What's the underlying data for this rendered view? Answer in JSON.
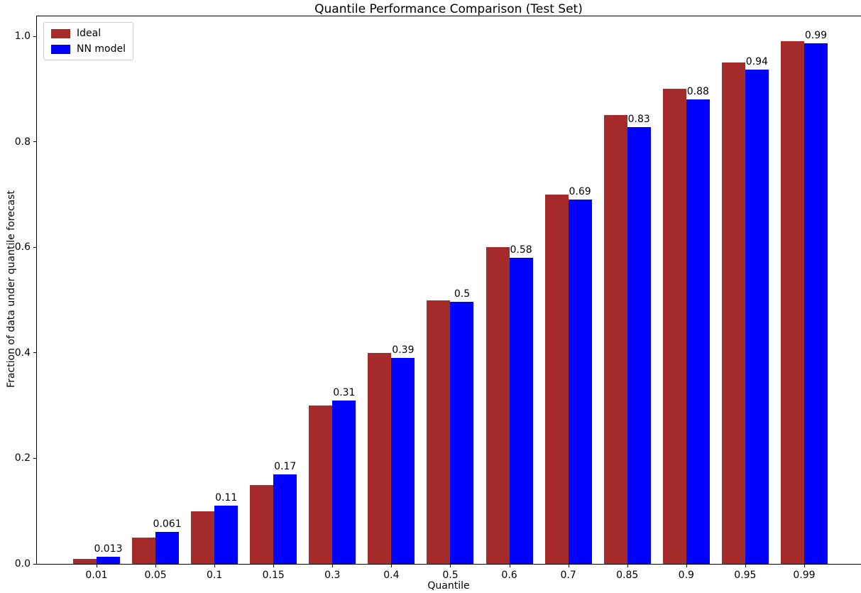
{
  "chart_data": {
    "type": "bar",
    "title": "Quantile Performance Comparison (Test Set)",
    "xlabel": "Quantile",
    "ylabel": "Fraction of data under quantile forecast",
    "categories": [
      "0.01",
      "0.05",
      "0.1",
      "0.15",
      "0.3",
      "0.4",
      "0.5",
      "0.6",
      "0.7",
      "0.85",
      "0.9",
      "0.95",
      "0.99"
    ],
    "series": [
      {
        "name": "Ideal",
        "color": "#a52a2a",
        "values": [
          0.01,
          0.05,
          0.1,
          0.15,
          0.3,
          0.4,
          0.5,
          0.6,
          0.7,
          0.85,
          0.9,
          0.95,
          0.99
        ]
      },
      {
        "name": "NN model",
        "color": "#0000ff",
        "values": [
          0.013,
          0.061,
          0.11,
          0.17,
          0.31,
          0.39,
          0.497,
          0.58,
          0.69,
          0.828,
          0.88,
          0.937,
          0.987
        ],
        "bar_labels": [
          "0.013",
          "0.061",
          "0.11",
          "0.17",
          "0.31",
          "0.39",
          "0.5",
          "0.58",
          "0.69",
          "0.83",
          "0.88",
          "0.94",
          "0.99"
        ]
      }
    ],
    "ytick_values": [
      0.0,
      0.2,
      0.4,
      0.6,
      0.8,
      1.0
    ],
    "ytick_labels": [
      "0.0",
      "0.2",
      "0.4",
      "0.6",
      "0.8",
      "1.0"
    ],
    "ylim": [
      0,
      1.038
    ],
    "grid": false,
    "legend_position": "upper-left",
    "legend_entries": [
      {
        "label": "Ideal",
        "color": "#a52a2a"
      },
      {
        "label": "NN model",
        "color": "#0000ff"
      }
    ]
  }
}
